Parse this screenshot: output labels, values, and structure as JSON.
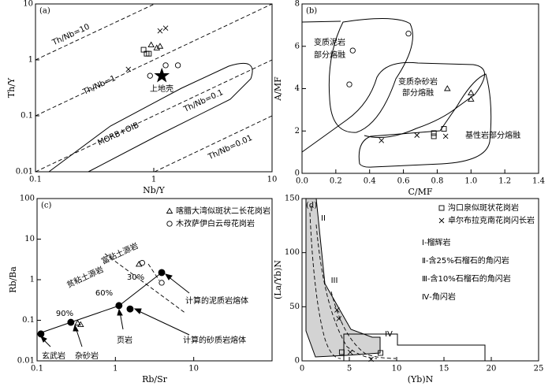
{
  "chart_data": [
    {
      "type": "scatter",
      "label": "(a)",
      "xlabel": "Nb/Y",
      "ylabel": "Th/Y",
      "xscale": "log",
      "yscale": "log",
      "xlim": [
        0.1,
        10
      ],
      "ylim": [
        0.01,
        10
      ],
      "xticks": [
        0.1,
        1,
        10
      ],
      "yticks": [
        0.01,
        0.1,
        1,
        10
      ],
      "series": [
        {
          "marker": "triangle",
          "color": "#000000",
          "x": [
            0.95,
            1.06,
            1.13
          ],
          "y": [
            1.85,
            1.63,
            1.75
          ]
        },
        {
          "marker": "square",
          "color": "#000000",
          "x": [
            0.82,
            0.87,
            0.91
          ],
          "y": [
            1.52,
            1.29,
            1.29
          ]
        },
        {
          "marker": "cross",
          "color": "#000000",
          "x": [
            1.13,
            1.26,
            0.61
          ],
          "y": [
            3.3,
            3.7,
            0.68
          ]
        },
        {
          "marker": "circle",
          "color": "#000000",
          "x": [
            0.93,
            1.26,
            1.6
          ],
          "y": [
            0.52,
            0.8,
            0.8
          ]
        },
        {
          "marker": "star",
          "color": "#000000",
          "x": [
            1.17
          ],
          "y": [
            0.52
          ]
        }
      ],
      "annotations": [
        "Th/Nb=10",
        "Th/Nb=1",
        "Th/Nb=0.1",
        "Th/Nb=0.01",
        "上地壳",
        "MORB+OIB"
      ]
    },
    {
      "type": "scatter",
      "label": "(b)",
      "xlabel": "C/MF",
      "ylabel": "A/MF",
      "xscale": "linear",
      "yscale": "linear",
      "xlim": [
        0,
        1.4
      ],
      "ylim": [
        0,
        8
      ],
      "xticks": [
        {
          "value": 0,
          "label": "0.0"
        },
        0.2,
        0.4,
        0.6,
        0.8,
        {
          "value": 1,
          "label": "1.0"
        },
        1.2,
        1.4
      ],
      "yticks": [
        0,
        2,
        4,
        6,
        8
      ],
      "series": [
        {
          "marker": "circle",
          "color": "#000000",
          "x": [
            0.3,
            0.63,
            0.28
          ],
          "y": [
            5.8,
            6.6,
            4.2
          ]
        },
        {
          "marker": "triangle",
          "color": "#000000",
          "x": [
            0.86,
            1.0,
            1.0
          ],
          "y": [
            4.0,
            3.8,
            3.5
          ]
        },
        {
          "marker": "square",
          "color": "#000000",
          "x": [
            0.84,
            0.78,
            0.78
          ],
          "y": [
            2.1,
            1.9,
            1.75
          ]
        },
        {
          "marker": "cross",
          "color": "#000000",
          "x": [
            0.47,
            0.68,
            0.85
          ],
          "y": [
            1.55,
            1.8,
            1.75
          ]
        }
      ],
      "annotations": [
        "变质泥岩",
        "部分熔融",
        "变质杂砂岩",
        "部分熔融",
        "基性岩部分熔融"
      ]
    },
    {
      "type": "scatter",
      "label": "(c)",
      "xlabel": "Rb/Sr",
      "ylabel": "Rb/Ba",
      "xscale": "log",
      "yscale": "log",
      "xlim": [
        0.1,
        100
      ],
      "ylim": [
        0.01,
        100
      ],
      "xticks": [
        0.1,
        1,
        10
      ],
      "yticks": [
        0.01,
        0.1,
        1,
        10,
        100
      ],
      "series": [
        {
          "name": "喀腊大湾似斑状二长花岗岩",
          "marker": "triangle",
          "color": "#000000",
          "x": [
            0.33,
            0.36,
            2.0
          ],
          "y": [
            0.085,
            0.078,
            2.4
          ]
        },
        {
          "name": "木孜萨伊白云母花岗岩",
          "marker": "circle",
          "color": "#000000",
          "x": [
            3.9,
            2.2
          ],
          "y": [
            0.84,
            2.6
          ]
        },
        {
          "marker": "circle-filled",
          "color": "#000000",
          "x": [
            0.112,
            0.27,
            1.11,
            1.54,
            3.9
          ],
          "y": [
            0.046,
            0.089,
            0.23,
            0.19,
            1.5
          ]
        }
      ],
      "annotations": [
        "贫粘土源岩",
        "富粘土源岩",
        "90%",
        "60%",
        "30%",
        "玄武岩",
        "杂砂岩",
        "页岩",
        "计算的泥质岩熔体",
        "计算的砂质岩熔体"
      ]
    },
    {
      "type": "scatter",
      "label": "(d)",
      "xlabel": "(Yb)N",
      "ylabel": "(La/Yb)N",
      "xscale": "linear",
      "yscale": "linear",
      "xlim": [
        0,
        25
      ],
      "ylim": [
        0,
        150
      ],
      "xticks": [
        0,
        5,
        10,
        15,
        20,
        25
      ],
      "yticks": [
        0,
        50,
        100,
        150
      ],
      "series": [
        {
          "name": "沟口泉似斑状花岗岩",
          "marker": "square",
          "color": "#000000",
          "x": [
            4.2,
            8.3
          ],
          "y": [
            8,
            7.3
          ]
        },
        {
          "name": "卓尔布拉克南花岗闪长岩",
          "marker": "cross",
          "color": "#000000",
          "x": [
            3.7,
            3.9,
            5.1,
            7.3
          ],
          "y": [
            47,
            39,
            8,
            1.5
          ]
        }
      ],
      "annotations": [
        "I",
        "II",
        "III",
        "IV",
        "Ⅰ-榴辉岩",
        "Ⅱ-含25%石榴石的角闪岩",
        "Ⅲ-含10%石榴石的角闪岩",
        "Ⅳ-角闪岩"
      ]
    }
  ]
}
